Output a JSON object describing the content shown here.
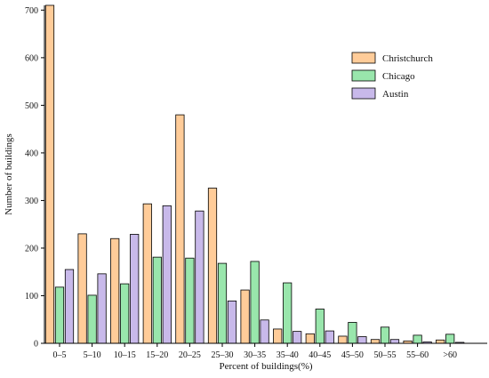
{
  "chart_data": {
    "type": "bar",
    "xlabel": "Percent of buildings(%)",
    "ylabel": "Number of buildings",
    "ylim": [
      0,
      710
    ],
    "yticks": [
      0,
      100,
      200,
      300,
      400,
      500,
      600,
      700
    ],
    "categories": [
      "0–5",
      "5–10",
      "10–15",
      "15–20",
      "20–25",
      "25–30",
      "30–35",
      "35–40",
      "40–45",
      "45–50",
      "50–55",
      "55–60",
      ">60"
    ],
    "series": [
      {
        "name": "Christchurch",
        "color": "#FFCC99",
        "values": [
          710,
          230,
          220,
          293,
          480,
          326,
          112,
          30,
          20,
          15,
          8,
          5,
          7
        ]
      },
      {
        "name": "Chicago",
        "color": "#99E6AC",
        "values": [
          118,
          101,
          125,
          181,
          179,
          168,
          172,
          127,
          72,
          44,
          34,
          17,
          19
        ]
      },
      {
        "name": "Austin",
        "color": "#C8B9EA",
        "values": [
          155,
          146,
          229,
          289,
          278,
          89,
          49,
          25,
          26,
          14,
          8,
          3,
          2
        ]
      }
    ],
    "legend_position": "top-right",
    "grid": false
  }
}
